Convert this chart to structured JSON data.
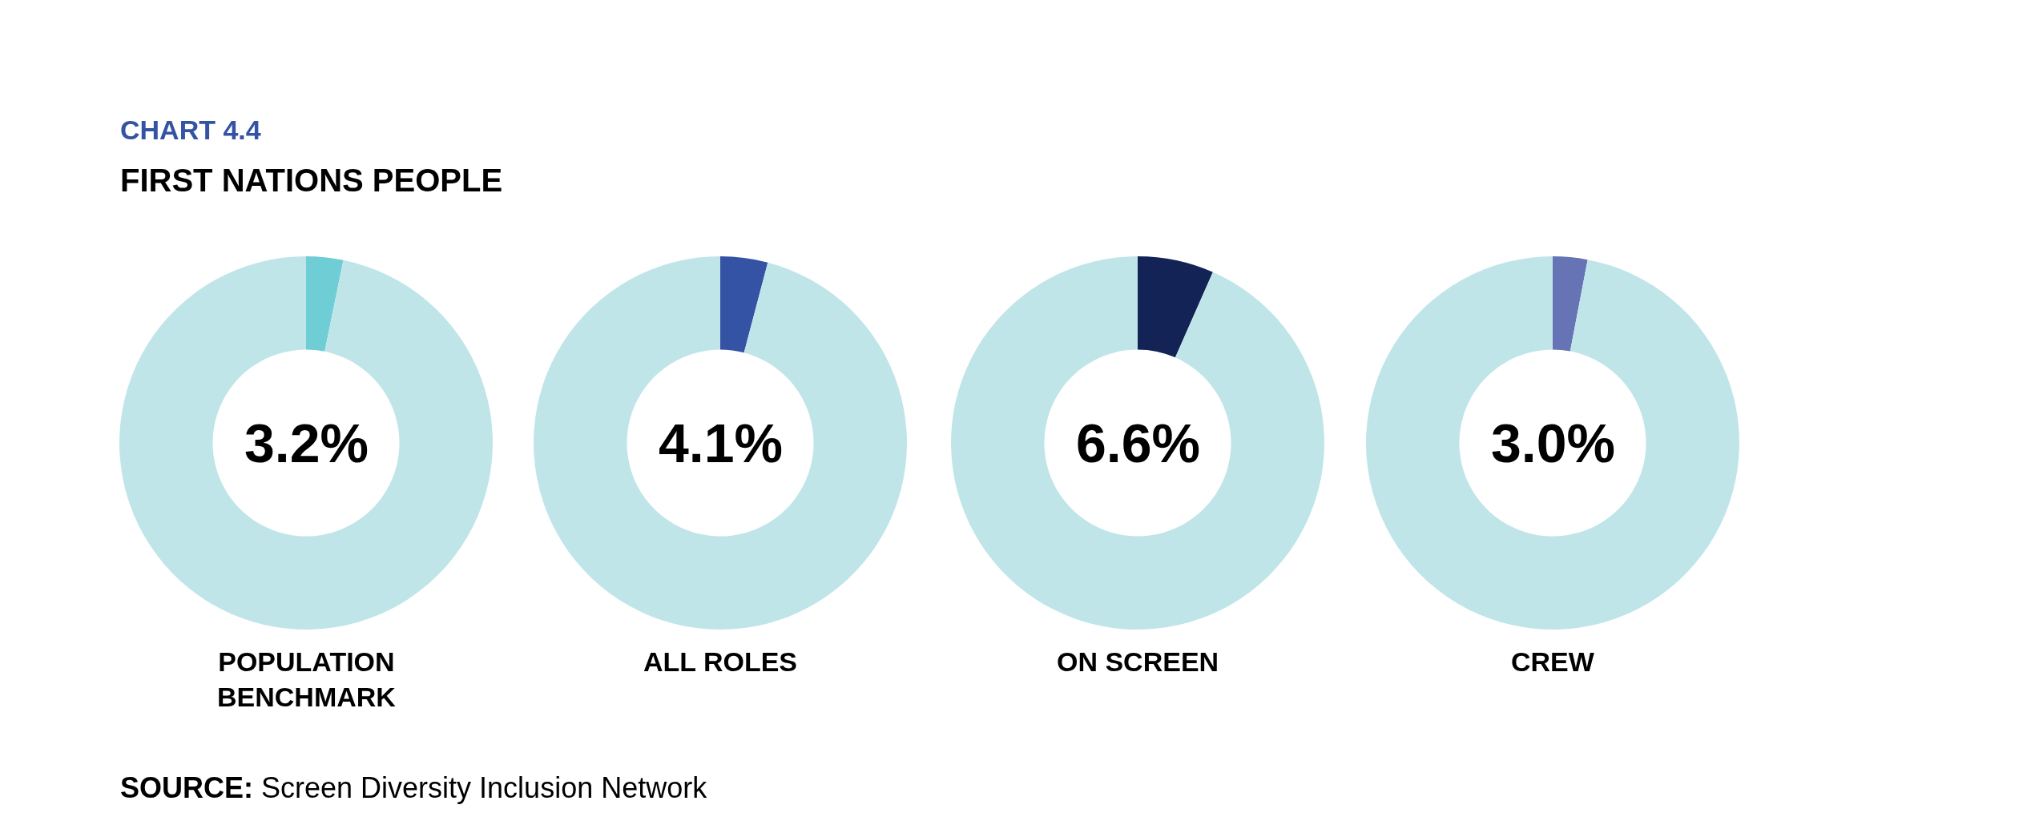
{
  "chart_data": [
    {
      "type": "donut",
      "title": "CHART 4.4",
      "subtitle": "FIRST NATIONS PEOPLE",
      "xlabel": "POPULATION BENCHMARK",
      "categories": [
        null,
        null
      ],
      "values": [
        3.2,
        96.8
      ],
      "colors": [
        "#6fcdd6",
        "#c0e5e9"
      ],
      "annotations": [
        "3.2%",
        "SOURCE: Screen Diversity Inclusion Network"
      ]
    },
    {
      "type": "donut",
      "xlabel": "ALL ROLES",
      "categories": [
        null,
        null
      ],
      "values": [
        4.1,
        95.9
      ],
      "colors": [
        "#3553a5",
        "#c0e5e9"
      ],
      "annotations": [
        "4.1%"
      ]
    },
    {
      "type": "donut",
      "xlabel": "ON SCREEN",
      "categories": [
        null,
        null
      ],
      "values": [
        6.6,
        93.4
      ],
      "colors": [
        "#142355",
        "#c0e5e9"
      ],
      "annotations": [
        "6.6%"
      ]
    },
    {
      "type": "donut",
      "xlabel": "CREW",
      "categories": [
        null,
        null
      ],
      "values": [
        3.0,
        97.0
      ],
      "colors": [
        "#6674b5",
        "#c0e5e9"
      ],
      "annotations": [
        "3.0%"
      ]
    }
  ]
}
